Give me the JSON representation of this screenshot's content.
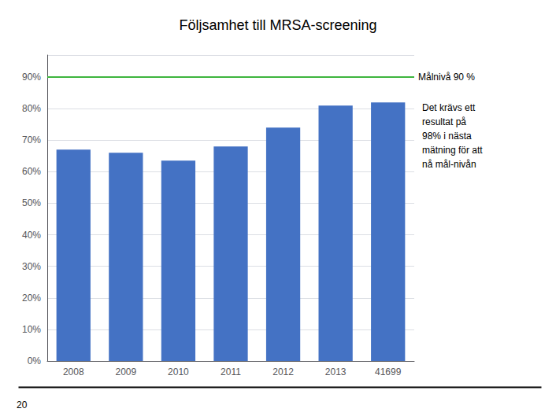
{
  "chart_data": {
    "type": "bar",
    "title": "Följsamhet till MRSA-screening",
    "categories": [
      "2008",
      "2009",
      "2010",
      "2011",
      "2012",
      "2013",
      "41699"
    ],
    "values": [
      0.67,
      0.66,
      0.635,
      0.68,
      0.74,
      0.81,
      0.82
    ],
    "color": "#4472C4",
    "ylim": [
      0,
      0.97
    ],
    "yticks": [
      {
        "value": 0.0,
        "label": "0%"
      },
      {
        "value": 0.1,
        "label": "10%"
      },
      {
        "value": 0.2,
        "label": "20%"
      },
      {
        "value": 0.3,
        "label": "30%"
      },
      {
        "value": 0.4,
        "label": "40%"
      },
      {
        "value": 0.5,
        "label": "50%"
      },
      {
        "value": 0.6,
        "label": "60%"
      },
      {
        "value": 0.7,
        "label": "70%"
      },
      {
        "value": 0.8,
        "label": "80%"
      },
      {
        "value": 0.9,
        "label": "90%"
      }
    ],
    "grid": true,
    "target_line": {
      "y": 0.9,
      "color": "#3DB53D",
      "label": "Målnivå 90 %"
    },
    "annotation": "Det krävs ett\nresultat på\n98% i nästa\nmätning för att\nnå mål-nivån",
    "footnote": "20"
  }
}
